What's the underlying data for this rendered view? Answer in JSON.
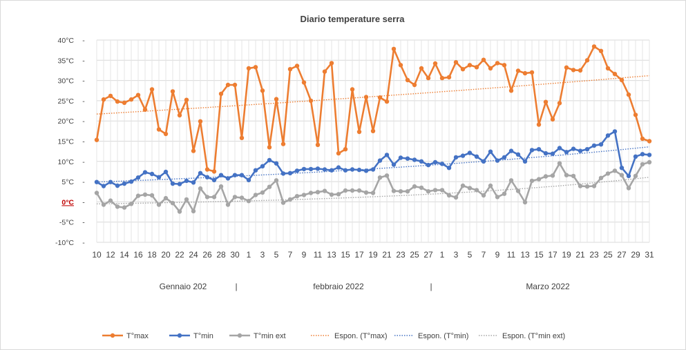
{
  "chart_data": {
    "type": "line",
    "title": "Diario temperature serra",
    "ylim": [
      -10,
      40
    ],
    "yticks": [
      "-10°C",
      "-5°C",
      "0°C",
      "5°C",
      "10°C",
      "15°C",
      "20°C",
      "25°C",
      "30°C",
      "35°C",
      "40°C"
    ],
    "grid": true,
    "legend_position": "bottom",
    "x_tick_labels": [
      "10",
      "12",
      "14",
      "16",
      "18",
      "20",
      "22",
      "24",
      "26",
      "28",
      "30",
      "1",
      "3",
      "5",
      "7",
      "9",
      "11",
      "13",
      "15",
      "17",
      "19",
      "21",
      "23",
      "25",
      "27",
      "1",
      "3",
      "5",
      "7",
      "9",
      "11",
      "13",
      "15",
      "17",
      "19",
      "21",
      "23",
      "25",
      "27",
      "29",
      "31"
    ],
    "month_labels": [
      "Gennaio 202",
      "|",
      "febbraio 2022",
      "|",
      "Marzo 2022"
    ],
    "series": [
      {
        "name": "T°max",
        "color": "#ed7d31",
        "values": [
          15.3,
          25.3,
          26.2,
          24.8,
          24.5,
          25.3,
          26.4,
          22.8,
          27.8,
          17.9,
          16.8,
          27.3,
          21.4,
          25.2,
          12.6,
          19.9,
          8,
          7.5,
          26.7,
          28.9,
          28.9,
          15.8,
          33,
          33.3,
          27.5,
          13.5,
          25.4,
          14.3,
          32.8,
          33.6,
          29.5,
          25,
          14.1,
          32.2,
          34.3,
          12,
          13,
          27.8,
          17.3,
          25.9,
          17.5,
          25.8,
          24.8,
          37.8,
          33.8,
          30.1,
          28.9,
          33,
          30.6,
          34.2,
          30.6,
          30.8,
          34.5,
          32.8,
          33.8,
          33.3,
          35.1,
          33,
          34.3,
          33.8,
          27.5,
          32.4,
          31.8,
          32,
          19.1,
          24.7,
          20.4,
          24.4,
          33.2,
          32.6,
          32.5,
          35,
          38.4,
          37.3,
          33,
          31.6,
          30.1,
          26.5,
          21.5,
          15.6,
          15
        ]
      },
      {
        "name": "T°min",
        "color": "#4472c4",
        "values": [
          4.9,
          3.9,
          4.9,
          4,
          4.5,
          5,
          6,
          7.3,
          6.9,
          6.1,
          7.4,
          4.5,
          4.4,
          5.2,
          4.8,
          7.1,
          6.1,
          5.4,
          6.6,
          5.8,
          6.6,
          6.6,
          5.4,
          7.8,
          8.8,
          10.3,
          9.5,
          7,
          7.1,
          7.7,
          8.1,
          8.1,
          8.2,
          8,
          7.8,
          8.5,
          7.8,
          8,
          7.9,
          7.7,
          8,
          10.2,
          11.6,
          9.2,
          10.9,
          10.7,
          10.4,
          10,
          9.1,
          9.8,
          9.4,
          8.4,
          11,
          11.4,
          12.1,
          11.2,
          10,
          12.4,
          10.2,
          11,
          12.6,
          11.7,
          10,
          12.8,
          13,
          12,
          11.9,
          13.3,
          12.3,
          13.1,
          12.6,
          13,
          13.9,
          14.2,
          16.4,
          17.4,
          8.4,
          6.4,
          11.2,
          11.8,
          11.6
        ]
      },
      {
        "name": "T°min ext",
        "color": "#a5a5a5",
        "values": [
          2.2,
          -0.7,
          0.3,
          -1.2,
          -1.4,
          -0.5,
          1.5,
          1.8,
          1.6,
          -0.7,
          0.9,
          -0.3,
          -2.4,
          0.6,
          -2.3,
          3.3,
          1.2,
          1.2,
          3.8,
          -0.7,
          1.2,
          1,
          0.2,
          1.7,
          2.3,
          3.7,
          5.3,
          -0.2,
          0.6,
          1.4,
          1.7,
          2.2,
          2.4,
          2.7,
          1.8,
          1.9,
          2.8,
          2.8,
          2.8,
          2.3,
          2.2,
          6,
          6.5,
          2.7,
          2.6,
          2.6,
          3.8,
          3.5,
          2.6,
          2.9,
          2.9,
          1.6,
          1.1,
          4,
          3.4,
          2.9,
          1.6,
          4,
          1.2,
          2,
          5.3,
          2.7,
          -0.1,
          5.2,
          5.6,
          6.3,
          6.5,
          9.5,
          6.6,
          6.4,
          3.9,
          3.8,
          3.9,
          5.9,
          7,
          7.7,
          6.6,
          3.4,
          6.4,
          9.3,
          9.8
        ]
      },
      {
        "name": "Espon. (T°max)",
        "color": "#ed7d31",
        "trendline": true,
        "values": [
          21.7,
          31.2
        ]
      },
      {
        "name": "Espon. (T°min)",
        "color": "#4472c4",
        "trendline": true,
        "values": [
          4.9,
          13.6
        ]
      },
      {
        "name": "Espon. (T°min ext)",
        "color": "#a5a5a5",
        "trendline": true,
        "values": [
          -0.5,
          6.1
        ]
      }
    ]
  }
}
